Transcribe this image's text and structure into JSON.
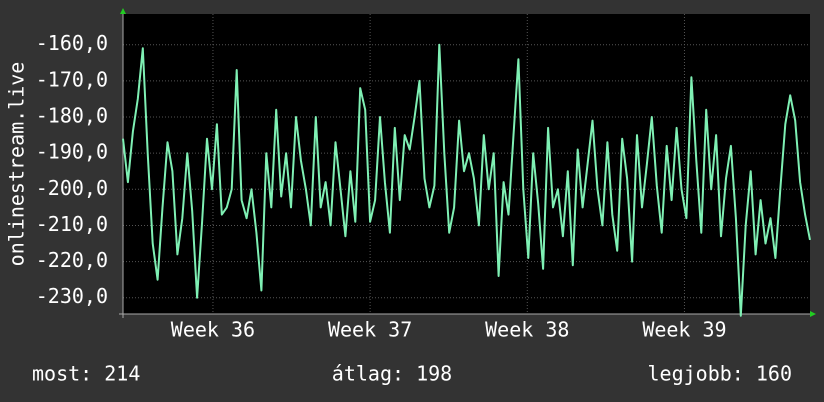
{
  "chart_data": {
    "type": "line",
    "y_label": "onlinestream.live",
    "x": [
      0,
      1,
      2,
      3,
      4,
      5,
      6,
      7,
      8,
      9,
      10,
      11,
      12,
      13,
      14,
      15,
      16,
      17,
      18,
      19,
      20,
      21,
      22,
      23,
      24,
      25,
      26,
      27,
      28,
      29,
      30,
      31,
      32,
      33,
      34,
      35,
      36,
      37,
      38,
      39,
      40,
      41,
      42,
      43,
      44,
      45,
      46,
      47,
      48,
      49,
      50,
      51,
      52,
      53,
      54,
      55,
      56,
      57,
      58,
      59,
      60,
      61,
      62,
      63,
      64,
      65,
      66,
      67,
      68,
      69,
      70,
      71,
      72,
      73,
      74,
      75,
      76,
      77,
      78,
      79,
      80,
      81,
      82,
      83,
      84,
      85,
      86,
      87,
      88,
      89,
      90,
      91,
      92,
      93,
      94,
      95,
      96,
      97,
      98,
      99,
      100,
      101,
      102,
      103,
      104,
      105,
      106,
      107,
      108,
      109,
      110,
      111,
      112,
      113,
      114,
      115,
      116,
      117,
      118,
      119,
      120,
      121,
      122,
      123,
      124,
      125,
      126,
      127,
      128,
      129,
      130,
      131,
      132,
      133,
      134,
      135,
      136,
      137,
      138,
      139
    ],
    "series": [
      {
        "color": "#7ff0b4",
        "values": [
          -186,
          -198,
          -184,
          -175,
          -161,
          -190,
          -215,
          -225,
          -205,
          -187,
          -195,
          -218,
          -208,
          -190,
          -206,
          -230,
          -209,
          -186,
          -200,
          -182,
          -207,
          -205,
          -200,
          -167,
          -203,
          -208,
          -200,
          -212,
          -228,
          -190,
          -205,
          -178,
          -202,
          -190,
          -205,
          -180,
          -192,
          -200,
          -210,
          -180,
          -205,
          -198,
          -210,
          -187,
          -200,
          -213,
          -195,
          -209,
          -172,
          -178,
          -209,
          -203,
          -180,
          -198,
          -212,
          -183,
          -203,
          -185,
          -189,
          -180,
          -170,
          -197,
          -205,
          -199,
          -160,
          -190,
          -212,
          -205,
          -181,
          -195,
          -190,
          -197,
          -210,
          -185,
          -200,
          -190,
          -224,
          -198,
          -207,
          -185,
          -164,
          -200,
          -219,
          -190,
          -204,
          -222,
          -183,
          -205,
          -200,
          -213,
          -195,
          -221,
          -189,
          -205,
          -193,
          -181,
          -200,
          -210,
          -187,
          -207,
          -217,
          -186,
          -197,
          -220,
          -185,
          -205,
          -193,
          -180,
          -199,
          -212,
          -188,
          -203,
          -183,
          -200,
          -208,
          -169,
          -192,
          -212,
          -178,
          -200,
          -185,
          -213,
          -197,
          -188,
          -208,
          -235,
          -210,
          -195,
          -218,
          -203,
          -215,
          -208,
          -219,
          -200,
          -182,
          -174,
          -181,
          -198,
          -207,
          -214
        ]
      }
    ],
    "xlim": [
      0,
      139
    ],
    "xticks": [
      {
        "value": 18.2,
        "label": "Week 36"
      },
      {
        "value": 50,
        "label": "Week 37"
      },
      {
        "value": 81.8,
        "label": "Week 38"
      },
      {
        "value": 113.6,
        "label": "Week 39"
      }
    ],
    "ylim": [
      -234.5,
      -151.5
    ],
    "yticks": [
      {
        "value": -160,
        "label": "-160,0"
      },
      {
        "value": -170,
        "label": "-170,0"
      },
      {
        "value": -180,
        "label": "-180,0"
      },
      {
        "value": -190,
        "label": "-190,0"
      },
      {
        "value": -200,
        "label": "-200,0"
      },
      {
        "value": -210,
        "label": "-210,0"
      },
      {
        "value": -220,
        "label": "-220,0"
      },
      {
        "value": -230,
        "label": "-230,0"
      }
    ],
    "grid": true,
    "stats": [
      "most: 214",
      "átlag: 198",
      "legjobb: 160"
    ]
  }
}
